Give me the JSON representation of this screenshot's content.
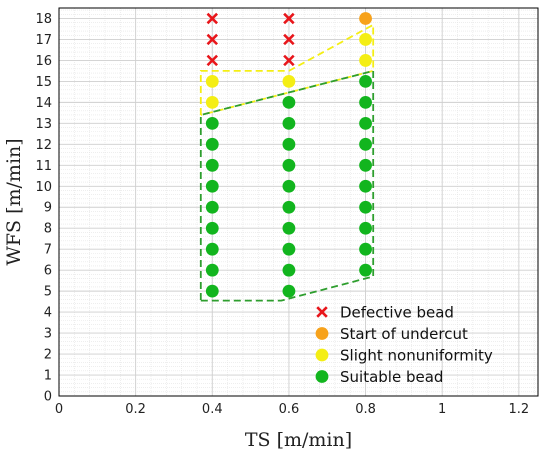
{
  "chart_data": {
    "type": "scatter",
    "xlabel": "TS [m/min]",
    "ylabel": "WFS [m/min]",
    "xlim": [
      0,
      1.25
    ],
    "ylim": [
      0,
      18.5
    ],
    "xticks": [
      0,
      0.2,
      0.4,
      0.6,
      0.8,
      1,
      1.2
    ],
    "xtick_labels": [
      "0",
      "0.2",
      "0.4",
      "0.6",
      "0.8",
      "1",
      "1.2"
    ],
    "yticks": [
      0,
      1,
      2,
      3,
      4,
      5,
      6,
      7,
      8,
      9,
      10,
      11,
      12,
      13,
      14,
      15,
      16,
      17,
      18
    ],
    "grid": true,
    "minor_grid": true,
    "legend_position": "bottom-right",
    "series": [
      {
        "name": "Defective bead",
        "marker": "x",
        "color": "#e8161b",
        "points": [
          [
            0.4,
            16
          ],
          [
            0.4,
            17
          ],
          [
            0.4,
            18
          ],
          [
            0.6,
            16
          ],
          [
            0.6,
            17
          ],
          [
            0.6,
            18
          ]
        ]
      },
      {
        "name": "Start of undercut",
        "marker": "circle",
        "color": "#f7a21b",
        "points": [
          [
            0.8,
            18
          ]
        ]
      },
      {
        "name": "Slight nonuniformity",
        "marker": "circle",
        "color": "#f4ee14",
        "points": [
          [
            0.4,
            14
          ],
          [
            0.4,
            15
          ],
          [
            0.6,
            15
          ],
          [
            0.8,
            16
          ],
          [
            0.8,
            17
          ]
        ]
      },
      {
        "name": "Suitable bead",
        "marker": "circle",
        "color": "#12b51e",
        "points": [
          [
            0.4,
            5
          ],
          [
            0.4,
            6
          ],
          [
            0.4,
            7
          ],
          [
            0.4,
            8
          ],
          [
            0.4,
            9
          ],
          [
            0.4,
            10
          ],
          [
            0.4,
            11
          ],
          [
            0.4,
            12
          ],
          [
            0.4,
            13
          ],
          [
            0.6,
            5
          ],
          [
            0.6,
            6
          ],
          [
            0.6,
            7
          ],
          [
            0.6,
            8
          ],
          [
            0.6,
            9
          ],
          [
            0.6,
            10
          ],
          [
            0.6,
            11
          ],
          [
            0.6,
            12
          ],
          [
            0.6,
            13
          ],
          [
            0.6,
            14
          ],
          [
            0.8,
            6
          ],
          [
            0.8,
            7
          ],
          [
            0.8,
            8
          ],
          [
            0.8,
            9
          ],
          [
            0.8,
            10
          ],
          [
            0.8,
            11
          ],
          [
            0.8,
            12
          ],
          [
            0.8,
            13
          ],
          [
            0.8,
            14
          ],
          [
            0.8,
            15
          ]
        ]
      }
    ],
    "regions": [
      {
        "color": "#f4ee14",
        "style": "dashed",
        "vertices": [
          [
            0.37,
            13.4
          ],
          [
            0.37,
            15.5
          ],
          [
            0.6,
            15.5
          ],
          [
            0.82,
            17.7
          ],
          [
            0.82,
            15.5
          ],
          [
            0.37,
            13.4
          ]
        ]
      },
      {
        "color": "#2e9e2e",
        "style": "dashed",
        "vertices": [
          [
            0.37,
            4.55
          ],
          [
            0.58,
            4.55
          ],
          [
            0.82,
            5.7
          ],
          [
            0.82,
            15.5
          ],
          [
            0.37,
            13.4
          ],
          [
            0.37,
            4.55
          ]
        ]
      }
    ]
  }
}
